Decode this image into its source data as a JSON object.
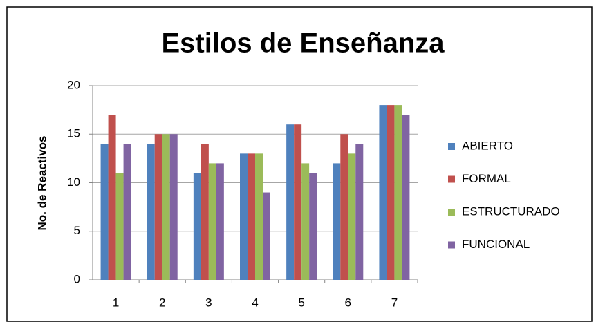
{
  "chart_data": {
    "type": "bar",
    "title": "Estilos de Enseñanza",
    "y_label": "No. de Reactivos",
    "categories": [
      "1",
      "2",
      "3",
      "4",
      "5",
      "6",
      "7"
    ],
    "series": [
      {
        "name": "ABIERTO",
        "color": "#4f81bd",
        "values": [
          14,
          14,
          11,
          13,
          16,
          12,
          18
        ]
      },
      {
        "name": "FORMAL",
        "color": "#c0504d",
        "values": [
          17,
          15,
          14,
          13,
          16,
          15,
          18
        ]
      },
      {
        "name": "ESTRUCTURADO",
        "color": "#9bbb59",
        "values": [
          11,
          15,
          12,
          13,
          12,
          13,
          18
        ]
      },
      {
        "name": "FUNCIONAL",
        "color": "#8064a2",
        "values": [
          14,
          15,
          12,
          9,
          11,
          14,
          17
        ]
      }
    ],
    "ylim": [
      0,
      20
    ],
    "yticks": [
      0,
      5,
      10,
      15,
      20
    ],
    "grid": true,
    "legend": "right"
  }
}
